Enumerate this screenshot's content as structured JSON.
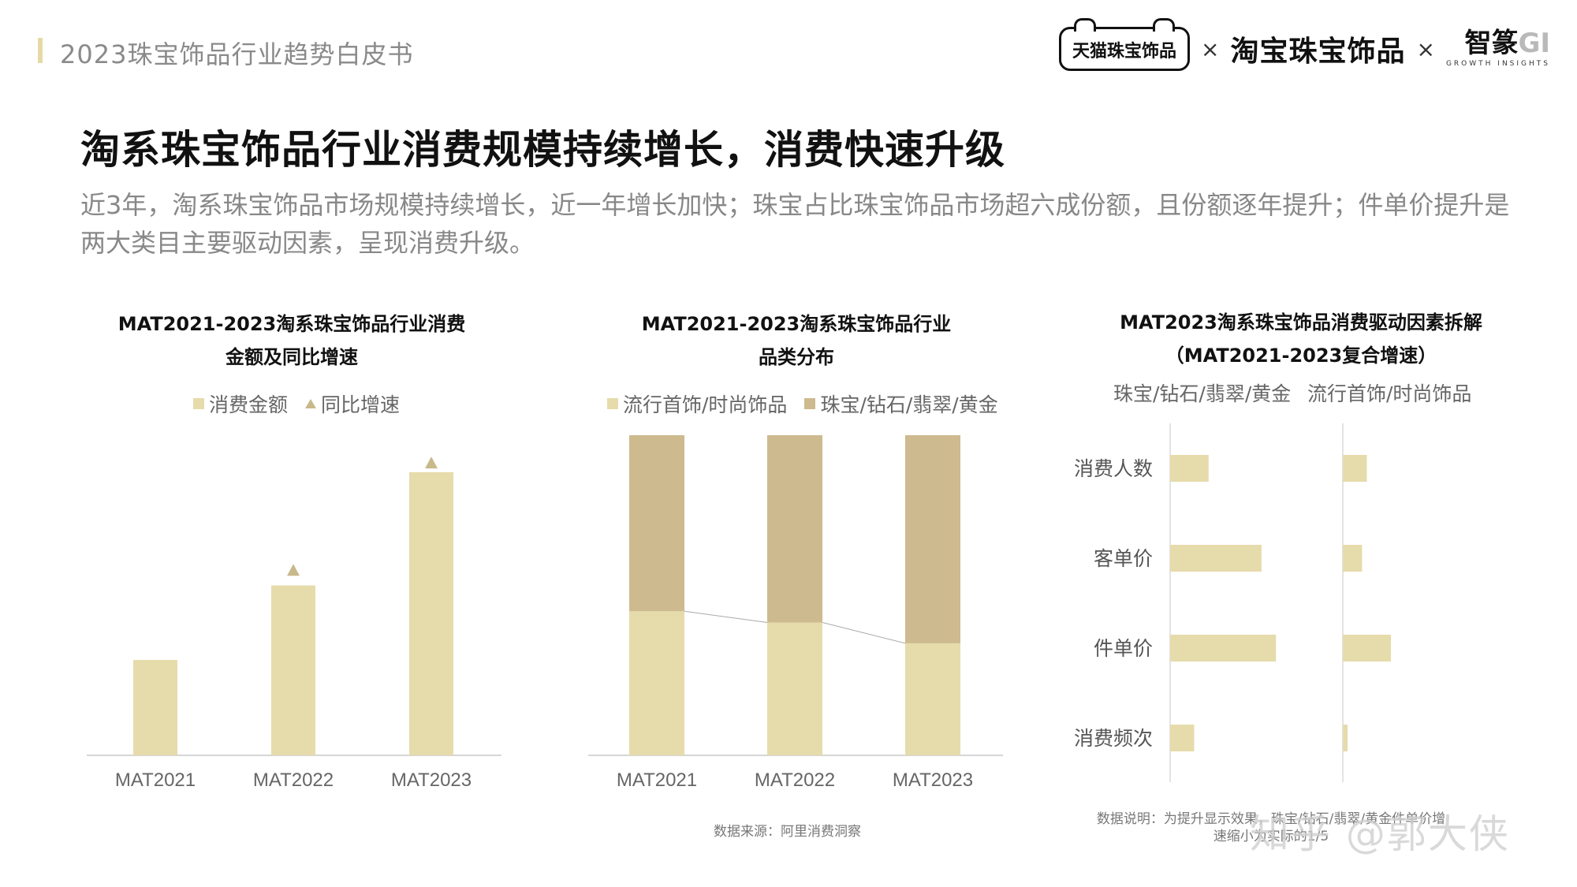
{
  "header": {
    "title": "2023珠宝饰品行业趋势白皮书",
    "logos": {
      "tmall": "天猫珠宝饰品",
      "taobao": "淘宝珠宝饰品",
      "zhiji_main": "智篆",
      "zhiji_gi": "GI",
      "zhiji_sub": "GROWTH INSIGHTS",
      "times": "×"
    }
  },
  "main_title": "淘系珠宝饰品行业消费规模持续增长，消费快速升级",
  "subtitle": "近3年，淘系珠宝饰品市场规模持续增长，近一年增长加快；珠宝占比珠宝饰品市场超六成份额，且份额逐年提升；件单价提升是两大类目主要驱动因素，呈现消费升级。",
  "colors": {
    "light": "#e6dbab",
    "dark": "#cdba8e",
    "triangle": "#c8b98b",
    "axis": "#d6d6d6"
  },
  "panels": {
    "left": {
      "title_line1": "MAT2021-2023淘系珠宝饰品行业消费",
      "title_line2": "金额及同比增速",
      "legend_amount": "消费金额",
      "legend_growth": "同比增速"
    },
    "mid": {
      "title_line1": "MAT2021-2023淘系珠宝饰品行业",
      "title_line2": "品类分布",
      "legend_fashion": "流行首饰/时尚饰品",
      "legend_jewelry": "珠宝/钻石/翡翠/黄金"
    },
    "right": {
      "title_line1": "MAT2023淘系珠宝饰品消费驱动因素拆解",
      "title_line2": "（MAT2021-2023复合增速）",
      "col_jewelry": "珠宝/钻石/翡翠/黄金",
      "col_fashion": "流行首饰/时尚饰品"
    }
  },
  "chart_data": [
    {
      "type": "bar",
      "title": "MAT2021-2023淘系珠宝饰品行业消费金额及同比增速",
      "categories": [
        "MAT2021",
        "MAT2022",
        "MAT2023"
      ],
      "series": [
        {
          "name": "消费金额",
          "values": [
            32,
            57,
            95
          ]
        },
        {
          "name": "同比增速",
          "values": [
            null,
            60,
            96
          ]
        }
      ],
      "ylim": [
        0,
        100
      ]
    },
    {
      "type": "bar",
      "stacked": true,
      "title": "MAT2021-2023淘系珠宝饰品行业品类分布",
      "categories": [
        "MAT2021",
        "MAT2022",
        "MAT2023"
      ],
      "series": [
        {
          "name": "流行首饰/时尚饰品",
          "values": [
            45,
            41.5,
            35
          ]
        },
        {
          "name": "珠宝/钻石/翡翠/黄金",
          "values": [
            55,
            58.5,
            65
          ]
        }
      ],
      "ylim": [
        0,
        100
      ]
    },
    {
      "type": "bar",
      "orientation": "horizontal",
      "title": "MAT2023淘系珠宝饰品消费驱动因素拆解（MAT2021-2023复合增速）",
      "categories": [
        "消费人数",
        "客单价",
        "件单价",
        "消费频次"
      ],
      "series": [
        {
          "name": "珠宝/钻石/翡翠/黄金",
          "values": [
            4,
            9.5,
            11,
            2.5
          ]
        },
        {
          "name": "流行首饰/时尚饰品",
          "values": [
            2.5,
            2,
            5,
            0.5
          ]
        }
      ]
    }
  ],
  "notes": {
    "source": "数据来源：阿里消费洞察",
    "explain_line1": "数据说明：为提升显示效果，珠宝/钻石/翡翠/黄金件单价增",
    "explain_line2": "速缩小为实际的1/5"
  },
  "watermark": "知乎 @郭大侠"
}
